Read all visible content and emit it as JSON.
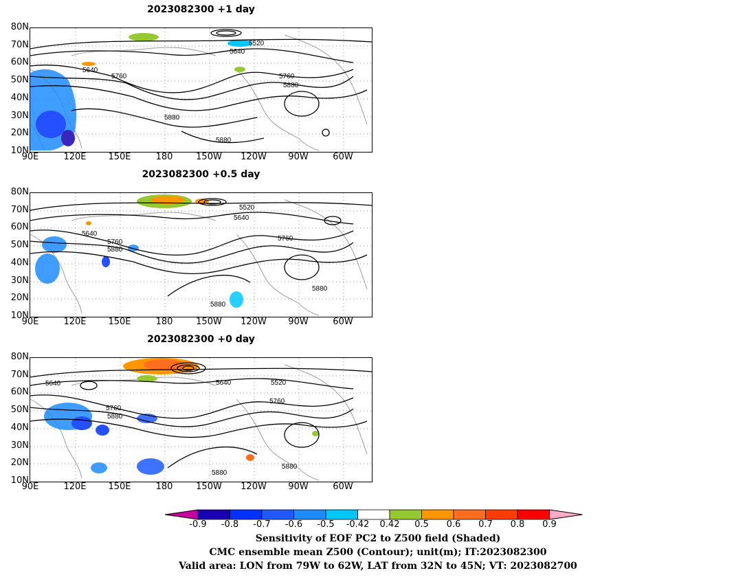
{
  "panels": [
    {
      "title": "2023082300  +1 day"
    },
    {
      "title": "2023082300  +0.5 day"
    },
    {
      "title": "2023082300  +0 day"
    }
  ],
  "lat_labels": [
    "80N",
    "70N",
    "60N",
    "50N",
    "40N",
    "30N",
    "20N",
    "10N"
  ],
  "lon_labels": [
    "90E",
    "120E",
    "150E",
    "180",
    "150W",
    "120W",
    "90W",
    "60W"
  ],
  "contour_labels": {
    "p1": [
      "5520",
      "5640",
      "5640",
      "5760",
      "5760",
      "5880",
      "5880",
      "5880"
    ],
    "p2": [
      "5520",
      "5640",
      "5640",
      "5760",
      "5760",
      "5880",
      "5880",
      "5880"
    ],
    "p3": [
      "5640",
      "5640",
      "5520",
      "5760",
      "5760",
      "5880",
      "5880",
      "5880"
    ]
  },
  "colorbar": {
    "labels": [
      "-0.9",
      "-0.8",
      "-0.7",
      "-0.6",
      "-0.5",
      "-0.42",
      "0.42",
      "0.5",
      "0.6",
      "0.7",
      "0.8",
      "0.9"
    ],
    "colors": [
      "#1a00b4",
      "#0032ff",
      "#1e5aff",
      "#1e8cff",
      "#00c8ff",
      "#ffffff",
      "#96c832",
      "#ff9600",
      "#ff6e1e",
      "#ff3c00",
      "#ff0000"
    ],
    "low_color": "#c800a0",
    "high_color": "#ffaac8"
  },
  "footer": [
    "Sensitivity of EOF PC2 to Z500 field (Shaded)",
    "CMC ensemble mean Z500 (Contour); unit(m); IT:2023082300",
    "Valid area: LON from 79W to 62W, LAT from 32N to 45N; VT: 2023082700"
  ]
}
